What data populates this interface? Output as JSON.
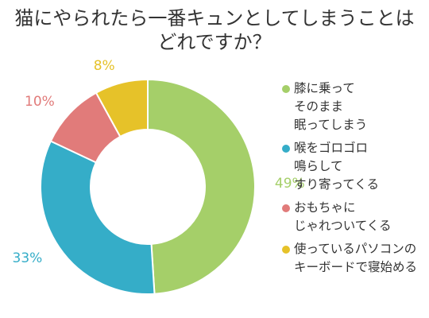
{
  "chart_data": {
    "type": "pie",
    "title_lines": [
      "猫にやられたら一番キュンとしてしまうことは",
      "どれですか？"
    ],
    "series": [
      {
        "name": "膝に乗ってそのままま眠ってしまう",
        "label_lines": [
          "膝に乗って",
          "そのまま",
          "眠ってしまう"
        ],
        "value": 49,
        "value_label": "49%",
        "color": "#a5cf69"
      },
      {
        "name": "喉をゴロゴロ鳴らしてすり寄ってくる",
        "label_lines": [
          "喉をゴロゴロ",
          "鳴らして",
          "すり寄ってくる"
        ],
        "value": 33,
        "value_label": "33%",
        "color": "#35adc8"
      },
      {
        "name": "おもちゃにじゃれついてくる",
        "label_lines": [
          "おもちゃに",
          "じゃれついてくる"
        ],
        "value": 10,
        "value_label": "10%",
        "color": "#e17b7a"
      },
      {
        "name": "使っているパソコンのキーボードで寝始める",
        "label_lines": [
          "使っているパソコンの",
          "キーボードで寝始める"
        ],
        "value": 8,
        "value_label": "8%",
        "color": "#e6c229"
      }
    ],
    "legend_position": "right",
    "donut": true
  }
}
